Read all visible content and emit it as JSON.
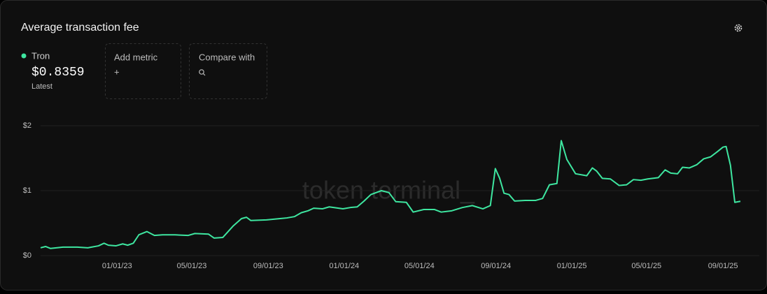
{
  "chart_data": {
    "type": "line",
    "title": "Average transaction fee",
    "series": [
      {
        "name": "Tron",
        "color": "#3ee6a0",
        "x": [
          "08/31/22",
          "09/08/22",
          "09/16/22",
          "10/06/22",
          "10/29/22",
          "11/15/22",
          "12/02/22",
          "12/11/22",
          "12/18/22",
          "12/30/22",
          "01/10/23",
          "01/18/23",
          "01/27/23",
          "02/05/23",
          "02/18/23",
          "03/02/23",
          "03/15/23",
          "04/04/23",
          "04/25/23",
          "05/06/23",
          "05/28/23",
          "06/06/23",
          "06/20/23",
          "07/07/23",
          "07/20/23",
          "07/28/23",
          "08/04/23",
          "08/29/23",
          "09/20/23",
          "10/01/23",
          "10/13/23",
          "10/24/23",
          "11/04/23",
          "11/13/23",
          "11/27/23",
          "12/08/23",
          "12/30/23",
          "01/11/24",
          "01/22/24",
          "02/02/24",
          "02/13/24",
          "03/01/24",
          "03/13/24",
          "03/24/24",
          "04/10/24",
          "04/21/24",
          "05/08/24",
          "05/25/24",
          "06/05/24",
          "06/22/24",
          "07/09/24",
          "07/25/24",
          "08/11/24",
          "08/23/24",
          "08/31/24",
          "09/07/24",
          "09/14/24",
          "09/22/24",
          "10/01/24",
          "10/18/24",
          "11/04/24",
          "11/15/24",
          "11/26/24",
          "12/08/24",
          "12/15/24",
          "12/24/24",
          "01/07/25",
          "01/25/25",
          "02/03/25",
          "02/10/25",
          "02/19/25",
          "03/04/25",
          "03/18/25",
          "03/30/25",
          "04/10/25",
          "04/22/25",
          "05/03/25",
          "05/20/25",
          "05/31/25",
          "06/09/25",
          "06/20/25",
          "06/28/25",
          "07/09/25",
          "07/21/25",
          "08/01/25",
          "08/12/25",
          "08/23/25",
          "09/01/25",
          "09/06/25",
          "09/13/25",
          "09/20/25",
          "09/29/25"
        ],
        "values": [
          0.12,
          0.14,
          0.11,
          0.13,
          0.13,
          0.12,
          0.15,
          0.19,
          0.16,
          0.15,
          0.18,
          0.16,
          0.19,
          0.32,
          0.37,
          0.31,
          0.32,
          0.32,
          0.31,
          0.34,
          0.33,
          0.27,
          0.28,
          0.46,
          0.57,
          0.59,
          0.54,
          0.55,
          0.57,
          0.58,
          0.6,
          0.66,
          0.69,
          0.73,
          0.72,
          0.75,
          0.72,
          0.74,
          0.75,
          0.84,
          0.94,
          1.0,
          0.97,
          0.83,
          0.82,
          0.67,
          0.71,
          0.71,
          0.67,
          0.69,
          0.74,
          0.77,
          0.72,
          0.77,
          1.34,
          1.19,
          0.96,
          0.94,
          0.84,
          0.85,
          0.85,
          0.88,
          1.09,
          1.11,
          1.77,
          1.48,
          1.26,
          1.23,
          1.35,
          1.3,
          1.19,
          1.18,
          1.08,
          1.09,
          1.17,
          1.16,
          1.18,
          1.2,
          1.32,
          1.27,
          1.26,
          1.36,
          1.35,
          1.4,
          1.49,
          1.52,
          1.6,
          1.67,
          1.68,
          1.39,
          0.82,
          0.8359
        ]
      }
    ],
    "latest": {
      "value": 0.8359,
      "value_label": "$0.8359",
      "label": "Latest"
    },
    "xlim": [
      "08/31/22",
      "09/29/25"
    ],
    "xticks": [
      "01/01/23",
      "05/01/23",
      "09/01/23",
      "01/01/24",
      "05/01/24",
      "09/01/24",
      "01/01/25",
      "05/01/25",
      "09/01/25"
    ],
    "ylim": [
      0,
      2
    ],
    "yticks": [
      {
        "value": 0,
        "label": "$0"
      },
      {
        "value": 1,
        "label": "$1"
      },
      {
        "value": 2,
        "label": "$2"
      }
    ],
    "grid": true
  },
  "controls": {
    "add_metric": "Add metric",
    "add_symbol": "+",
    "compare": "Compare with"
  },
  "watermark": "token terminal_"
}
